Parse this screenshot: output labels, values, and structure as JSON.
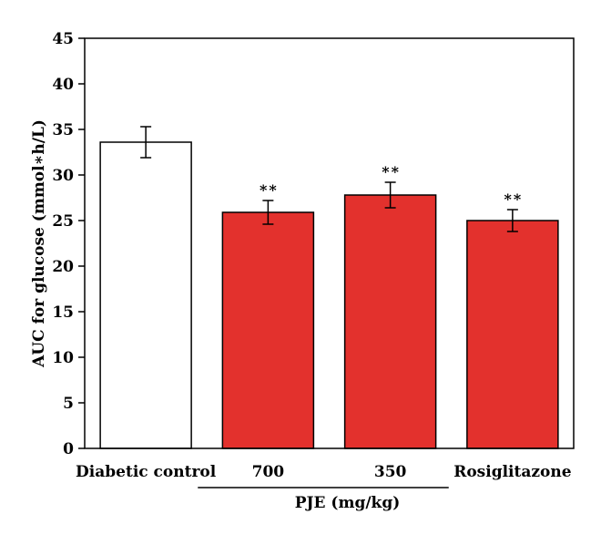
{
  "chart_data": {
    "type": "bar",
    "categories": [
      "Diabetic control",
      "700",
      "350",
      "Rosiglitazone"
    ],
    "values": [
      33.6,
      25.9,
      27.8,
      25.0
    ],
    "errors": [
      1.7,
      1.3,
      1.4,
      1.2
    ],
    "annotations": [
      "",
      "**",
      "**",
      "**"
    ],
    "bar_colors": [
      "#ffffff",
      "#e3312d",
      "#e3312d",
      "#e3312d"
    ],
    "ylabel": "AUC for glucose (mmol∗h/L)",
    "group_label": "PJE (mg/kg)",
    "yticks": [
      "0",
      "5",
      "10",
      "15",
      "20",
      "25",
      "30",
      "35",
      "40",
      "45"
    ],
    "ylim": [
      0,
      45
    ],
    "grid": false
  }
}
